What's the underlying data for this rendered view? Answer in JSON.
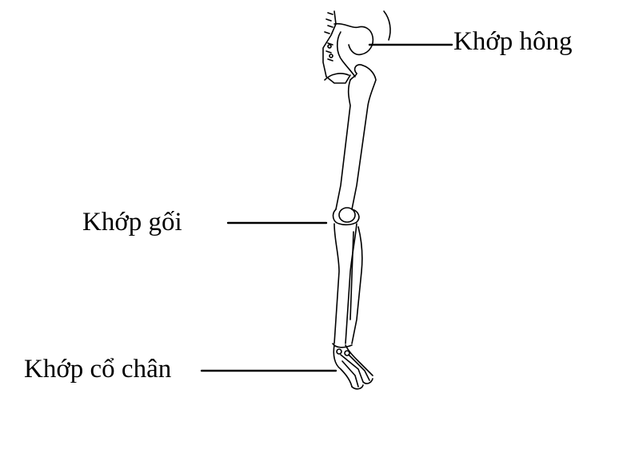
{
  "labels": {
    "hip": "Khớp hông",
    "knee": "Khớp gối",
    "ankle": "Khớp cổ chân"
  },
  "colors": {
    "line": "#000000",
    "background": "#ffffff"
  }
}
